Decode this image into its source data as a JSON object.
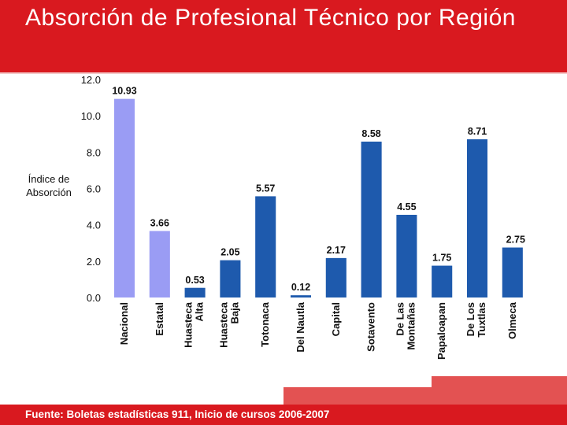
{
  "header": {
    "title": "Absorción de Profesional Técnico por Región"
  },
  "footer": {
    "source": "Fuente: Boletas estadísticas 911, Inicio de cursos 2006-2007"
  },
  "colors": {
    "header_red": "#d9191f",
    "bar_highlight": "#9a9cf4",
    "bar_region": "#1e5aad"
  },
  "chart_data": {
    "type": "bar",
    "title": "",
    "xlabel": "",
    "ylabel": "Índice de Absorción",
    "ylim": [
      0,
      12
    ],
    "yticks": [
      "0.0",
      "2.0",
      "4.0",
      "6.0",
      "8.0",
      "10.0",
      "12.0"
    ],
    "grid": false,
    "legend": "none",
    "categories": [
      "Nacional",
      "Estatal",
      "Huasteca Alta",
      "Huasteca Baja",
      "Totonaca",
      "Del Nautla",
      "Capital",
      "Sotavento",
      "De Las Montañas",
      "Papaloapan",
      "De Los Tuxtlas",
      "Olmeca"
    ],
    "values": [
      10.93,
      3.66,
      0.53,
      2.05,
      5.57,
      0.12,
      2.17,
      8.58,
      4.55,
      1.75,
      8.71,
      2.75
    ],
    "data_labels": [
      "10.93",
      "3.66",
      "0.53",
      "2.05",
      "5.57",
      "0.12",
      "2.17",
      "8.58",
      "4.55",
      "1.75",
      "8.71",
      "2.75"
    ],
    "bar_colors": [
      "#9a9cf4",
      "#9a9cf4",
      "#1e5aad",
      "#1e5aad",
      "#1e5aad",
      "#1e5aad",
      "#1e5aad",
      "#1e5aad",
      "#1e5aad",
      "#1e5aad",
      "#1e5aad",
      "#1e5aad"
    ]
  }
}
